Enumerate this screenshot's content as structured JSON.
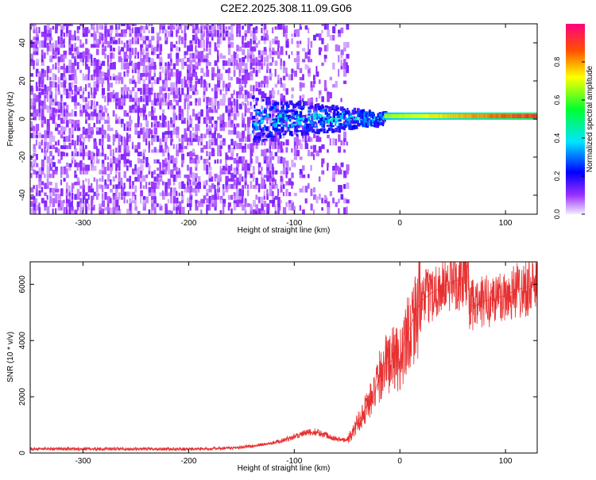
{
  "title": "C2E2.2025.308.11.09.G06",
  "chart_data": [
    {
      "type": "heatmap",
      "xlabel": "Height of straight line (km)",
      "ylabel": "Frequency (Hz)",
      "xlim": [
        -350,
        130
      ],
      "ylim": [
        -50,
        50
      ],
      "xticks": [
        -300,
        -200,
        -100,
        0,
        100
      ],
      "yticks": [
        -40,
        -20,
        0,
        20,
        40
      ],
      "colorbar": {
        "label": "Normalized spectral amplitude",
        "range": [
          0,
          1
        ],
        "ticks": [
          "0.0",
          "0.2",
          "0.4",
          "0.6",
          "0.8"
        ]
      },
      "features": [
        {
          "description": "broadband noise",
          "x_range": [
            -350,
            -50
          ],
          "freq_range": [
            -50,
            50
          ],
          "amplitude": 0.1
        },
        {
          "description": "signal onset band",
          "x_range": [
            -140,
            -15
          ],
          "freq_center": 0,
          "freq_halfwidth": [
            12,
            3
          ],
          "amplitude": [
            0.15,
            0.5
          ]
        },
        {
          "description": "narrow carrier line",
          "x_range": [
            -15,
            130
          ],
          "freq_center": 1.5,
          "freq_halfwidth": 1.5,
          "amplitude": [
            0.65,
            0.95
          ]
        }
      ]
    },
    {
      "type": "line",
      "xlabel": "Height of straight line (km)",
      "ylabel": "SNR (10 * v/v)",
      "xlim": [
        -350,
        130
      ],
      "ylim": [
        0,
        6800
      ],
      "xticks": [
        -300,
        -200,
        -100,
        0,
        100
      ],
      "yticks": [
        0,
        2000,
        4000,
        6000
      ],
      "color": "#e83030",
      "series": [
        {
          "name": "SNR",
          "x": [
            -350,
            -300,
            -250,
            -200,
            -170,
            -150,
            -130,
            -110,
            -100,
            -90,
            -80,
            -70,
            -60,
            -50,
            -45,
            -40,
            -35,
            -30,
            -25,
            -20,
            -15,
            -10,
            -5,
            0,
            5,
            10,
            15,
            20,
            30,
            40,
            50,
            60,
            65,
            66,
            70,
            80,
            90,
            100,
            110,
            120,
            130
          ],
          "y": [
            150,
            150,
            140,
            140,
            160,
            200,
            300,
            450,
            600,
            700,
            750,
            650,
            500,
            450,
            700,
            1100,
            1400,
            1800,
            2000,
            2600,
            3200,
            3200,
            3400,
            3200,
            4100,
            4500,
            5000,
            5400,
            5700,
            5900,
            6100,
            6200,
            6300,
            5300,
            5200,
            5400,
            5500,
            5600,
            5800,
            5900,
            6000
          ]
        }
      ]
    }
  ]
}
